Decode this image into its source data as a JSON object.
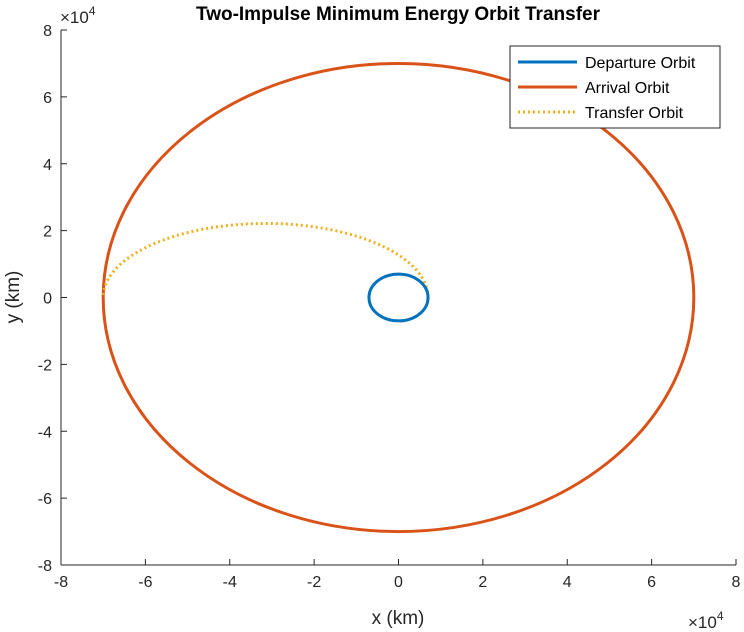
{
  "chart_data": {
    "type": "line",
    "title": "Two-Impulse Minimum Energy Orbit Transfer",
    "xlabel": "x (km)",
    "ylabel": "y (km)",
    "xlim": [
      -80000,
      80000
    ],
    "ylim": [
      -80000,
      80000
    ],
    "axis_scale_label": {
      "base": "×10",
      "exponent": "4"
    },
    "xticks": [
      -8,
      -6,
      -4,
      -2,
      0,
      2,
      4,
      6,
      8
    ],
    "yticks": [
      -8,
      -6,
      -4,
      -2,
      0,
      2,
      4,
      6,
      8
    ],
    "grid": false,
    "legend_position": "top-right",
    "series": [
      {
        "name": "Departure Orbit",
        "color": "#0072BD",
        "style": "solid",
        "shape": "circle",
        "center": [
          0,
          0
        ],
        "radius": 7000
      },
      {
        "name": "Arrival Orbit",
        "color": "#D95319",
        "style": "solid",
        "shape": "circle",
        "center": [
          0,
          0
        ],
        "radius": 70000
      },
      {
        "name": "Transfer Orbit",
        "color": "#EDB120",
        "style": "dotted",
        "shape": "half-ellipse",
        "periapsis": 7000,
        "apoapsis": 70000
      }
    ]
  }
}
